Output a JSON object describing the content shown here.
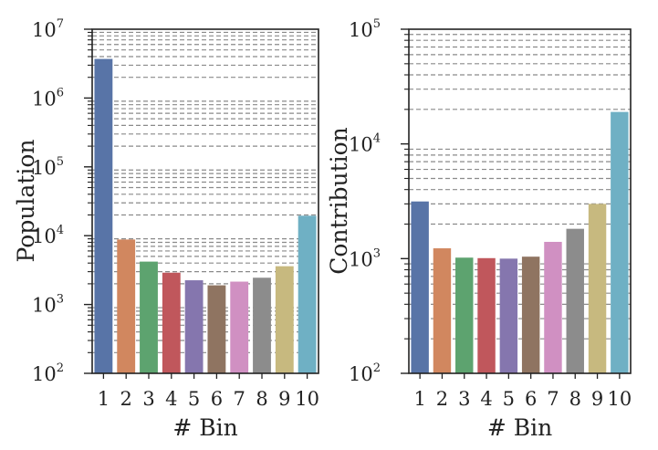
{
  "chart_data": [
    {
      "type": "bar",
      "panel": "left",
      "title": "",
      "xlabel": "# Bin",
      "ylabel": "Population",
      "yscale": "log",
      "ylim": [
        100,
        10000000
      ],
      "yticks": [
        {
          "base": "10",
          "exp": "2",
          "value": 100
        },
        {
          "base": "10",
          "exp": "3",
          "value": 1000
        },
        {
          "base": "10",
          "exp": "4",
          "value": 10000
        },
        {
          "base": "10",
          "exp": "5",
          "value": 100000
        },
        {
          "base": "10",
          "exp": "6",
          "value": 1000000
        },
        {
          "base": "10",
          "exp": "7",
          "value": 10000000
        }
      ],
      "grid": "y-minor-dashed",
      "categories": [
        "1",
        "2",
        "3",
        "4",
        "5",
        "6",
        "7",
        "8",
        "9",
        "10"
      ],
      "values": [
        3700000,
        8800,
        4200,
        2900,
        2250,
        1900,
        2150,
        2450,
        3600,
        19500
      ],
      "colors": [
        "#5874a7",
        "#d1875f",
        "#5da36f",
        "#c0575c",
        "#8576ae",
        "#8f7461",
        "#d090c2",
        "#8c8c8c",
        "#c7b97f",
        "#6fb0c4"
      ]
    },
    {
      "type": "bar",
      "panel": "right",
      "title": "",
      "xlabel": "# Bin",
      "ylabel": "Contribution",
      "yscale": "log",
      "ylim": [
        100,
        100000
      ],
      "yticks": [
        {
          "base": "10",
          "exp": "2",
          "value": 100
        },
        {
          "base": "10",
          "exp": "3",
          "value": 1000
        },
        {
          "base": "10",
          "exp": "4",
          "value": 10000
        },
        {
          "base": "10",
          "exp": "5",
          "value": 100000
        }
      ],
      "grid": "y-minor-dashed",
      "categories": [
        "1",
        "2",
        "3",
        "4",
        "5",
        "6",
        "7",
        "8",
        "9",
        "10"
      ],
      "values": [
        3150,
        1230,
        1020,
        1010,
        1000,
        1040,
        1400,
        1820,
        3000,
        19000
      ],
      "colors": [
        "#5874a7",
        "#d1875f",
        "#5da36f",
        "#c0575c",
        "#8576ae",
        "#8f7461",
        "#d090c2",
        "#8c8c8c",
        "#c7b97f",
        "#6fb0c4"
      ]
    }
  ]
}
